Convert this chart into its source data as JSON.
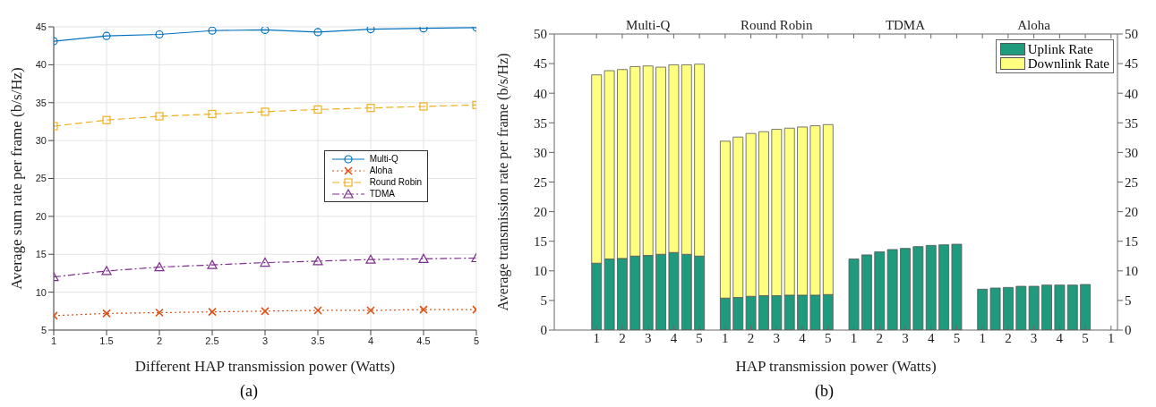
{
  "chart_data": [
    {
      "type": "line",
      "xlabel": "Different HAP transmission power (Watts)",
      "ylabel": "Average sum rate per frame (b/s/Hz)",
      "x": [
        1,
        1.5,
        2,
        2.5,
        3,
        3.5,
        4,
        4.5,
        5
      ],
      "xlim": [
        1,
        5
      ],
      "xticks": [
        1,
        1.5,
        2,
        2.5,
        3,
        3.5,
        4,
        4.5,
        5
      ],
      "ylim": [
        5,
        45
      ],
      "yticks": [
        5,
        10,
        15,
        20,
        25,
        30,
        35,
        40,
        45
      ],
      "grid": true,
      "legend": "right",
      "annotations": [
        "(a)"
      ],
      "series": [
        {
          "name": "Multi-Q",
          "color": "#0072bd",
          "marker": "circle",
          "line_style": "solid",
          "values": [
            43.1,
            43.8,
            44.0,
            44.5,
            44.6,
            44.3,
            44.7,
            44.8,
            44.9
          ]
        },
        {
          "name": "Aloha",
          "color": "#d95319",
          "marker": "cross",
          "line_style": "dotted",
          "values": [
            6.9,
            7.2,
            7.3,
            7.4,
            7.5,
            7.6,
            7.6,
            7.7,
            7.7
          ]
        },
        {
          "name": "Round Robin",
          "color": "#edb120",
          "marker": "square",
          "line_style": "dashed",
          "values": [
            31.9,
            32.7,
            33.2,
            33.5,
            33.8,
            34.1,
            34.3,
            34.5,
            34.7
          ]
        },
        {
          "name": "TDMA",
          "color": "#7e2f8e",
          "marker": "triangle",
          "line_style": "dashdot",
          "values": [
            12.0,
            12.8,
            13.3,
            13.6,
            13.9,
            14.1,
            14.3,
            14.4,
            14.5
          ]
        }
      ]
    },
    {
      "type": "bar",
      "stacked": true,
      "xlabel": "HAP transmission power (Watts)",
      "ylabel": "Average transmission rate per frame (b/s/Hz)",
      "ylim": [
        0,
        50
      ],
      "yticks": [
        0,
        5,
        10,
        15,
        20,
        25,
        30,
        35,
        40,
        45,
        50
      ],
      "y2lim": [
        0,
        50
      ],
      "y2ticks": [
        0,
        5,
        10,
        15,
        20,
        25,
        30,
        35,
        40,
        45,
        50
      ],
      "legend": "top right",
      "annotations": [
        "Multi-Q",
        "Round Robin",
        "TDMA",
        "Aloha",
        "(b)"
      ],
      "categories": [
        "1",
        null,
        "2",
        null,
        "3",
        null,
        "4",
        null,
        "5",
        null,
        "1",
        null,
        "2",
        null,
        "3",
        null,
        "4",
        null,
        "5",
        null,
        "1",
        null,
        "2",
        null,
        "3",
        null,
        "4",
        null,
        "5",
        null,
        "1",
        null,
        "2",
        null,
        "3",
        null,
        "4",
        null,
        "5",
        null,
        "1"
      ],
      "series": [
        {
          "name": "Uplink Rate",
          "color": "#1f9a7c",
          "values": [
            11.3,
            12.0,
            12.1,
            12.5,
            12.6,
            12.8,
            13.1,
            12.8,
            12.5,
            null,
            5.4,
            5.5,
            5.7,
            5.8,
            5.8,
            5.9,
            5.9,
            5.9,
            6.0,
            null,
            12.0,
            12.7,
            13.2,
            13.6,
            13.8,
            14.1,
            14.3,
            14.4,
            14.5,
            null,
            6.9,
            7.1,
            7.2,
            7.4,
            7.4,
            7.6,
            7.6,
            7.6,
            7.7,
            null,
            null
          ]
        },
        {
          "name": "Downlink Rate",
          "color": "#ffff80",
          "values": [
            31.8,
            31.8,
            31.9,
            32.0,
            32.0,
            31.6,
            31.7,
            32.0,
            32.4,
            null,
            26.5,
            27.1,
            27.5,
            27.7,
            28.1,
            28.2,
            28.4,
            28.6,
            28.7,
            null,
            null,
            null,
            null,
            null,
            null,
            null,
            null,
            null,
            null,
            null,
            null,
            null,
            null,
            null,
            null,
            null,
            null,
            null,
            null,
            null,
            null
          ]
        }
      ]
    }
  ]
}
